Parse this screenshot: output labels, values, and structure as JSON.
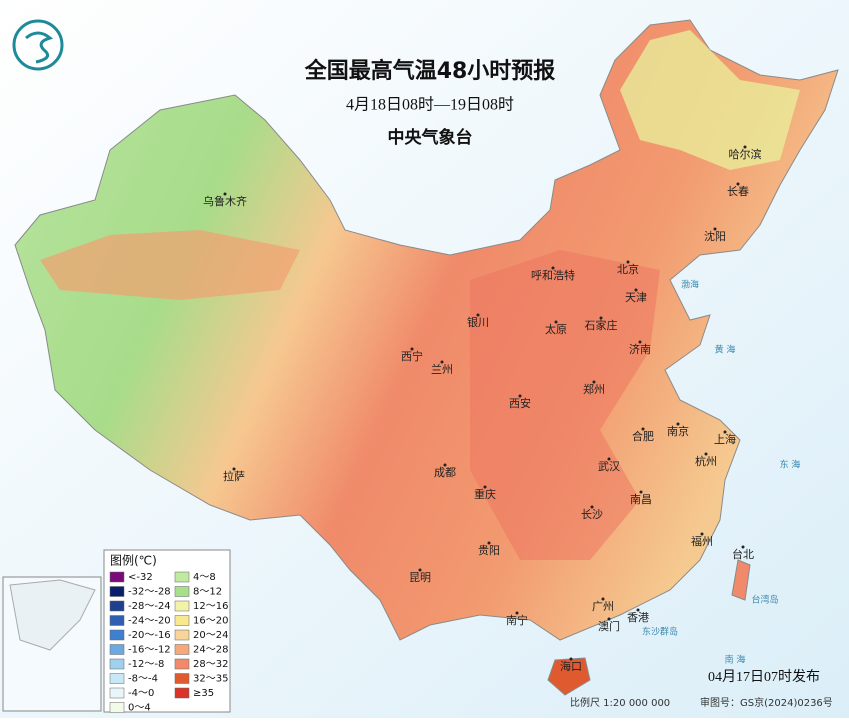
{
  "header": {
    "title": "全国最高气温48小时预报",
    "subtitle": "4月18日08时—19日08时",
    "agency": "中央气象台"
  },
  "cities": [
    "乌鲁木齐",
    "哈尔滨",
    "长春",
    "沈阳",
    "呼和浩特",
    "北京",
    "天津",
    "银川",
    "太原",
    "石家庄",
    "济南",
    "西宁",
    "兰州",
    "西安",
    "郑州",
    "南京",
    "上海",
    "合肥",
    "杭州",
    "拉萨",
    "成都",
    "武汉",
    "重庆",
    "南昌",
    "长沙",
    "福州",
    "台北",
    "贵阳",
    "昆明",
    "南宁",
    "广州",
    "香港",
    "澳门",
    "海口"
  ],
  "seas": [
    "渤海",
    "黄 海",
    "东 海",
    "台湾岛",
    "东沙群岛",
    "南 海"
  ],
  "legend": {
    "title": "图例(℃)",
    "items": [
      {
        "label": "<-32",
        "color": "#7a0a7a"
      },
      {
        "label": "-32～-28",
        "color": "#0a1f6b"
      },
      {
        "label": "-28～-24",
        "color": "#1f3f8f"
      },
      {
        "label": "-24～-20",
        "color": "#2f5fb0"
      },
      {
        "label": "-20～-16",
        "color": "#3f7fd0"
      },
      {
        "label": "-16～-12",
        "color": "#6aaae0"
      },
      {
        "label": "-12～-8",
        "color": "#9fd0ee"
      },
      {
        "label": "-8～-4",
        "color": "#c8e8f5"
      },
      {
        "label": "-4～0",
        "color": "#e8f6fa"
      },
      {
        "label": "0～4",
        "color": "#f2fbe8"
      },
      {
        "label": "4～8",
        "color": "#c0eaa0"
      },
      {
        "label": "8～12",
        "color": "#a8e08a"
      },
      {
        "label": "12～16",
        "color": "#f4f1a8"
      },
      {
        "label": "16～20",
        "color": "#f8e890"
      },
      {
        "label": "20～24",
        "color": "#f9d49a"
      },
      {
        "label": "24～28",
        "color": "#f5a97a"
      },
      {
        "label": "28～32",
        "color": "#f08a6a"
      },
      {
        "label": "32～35",
        "color": "#e05a30"
      },
      {
        "label": "≥35",
        "color": "#d8342a"
      }
    ]
  },
  "footer": {
    "issued": "04月17日07时发布",
    "scale": "比例尺 1:20 000 000",
    "approval": "审图号：GS京(2024)0236号"
  }
}
